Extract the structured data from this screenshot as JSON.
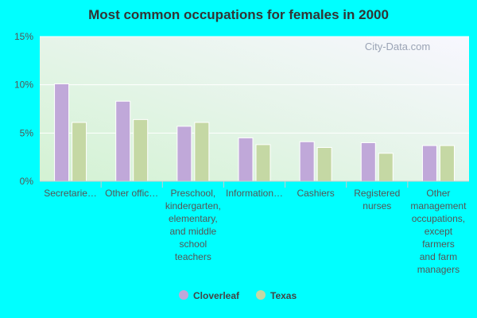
{
  "chart_data": {
    "type": "bar",
    "title": "Most common occupations for females in 2000",
    "xlabel": "",
    "ylabel": "",
    "ylim": [
      0,
      15
    ],
    "yticks": [
      "0%",
      "5%",
      "10%",
      "15%"
    ],
    "y_unit": "%",
    "grid": true,
    "legend_position": "bottom-center",
    "categories": [
      [
        "Secretarie…"
      ],
      [
        "Other offic…"
      ],
      [
        "Preschool,",
        "kindergarten,",
        "elementary,",
        "and middle",
        "school",
        "teachers"
      ],
      [
        "Information…"
      ],
      [
        "Cashiers"
      ],
      [
        "Registered",
        "nurses"
      ],
      [
        "Other",
        "management",
        "occupations,",
        "except",
        "farmers",
        "and farm",
        "managers"
      ]
    ],
    "series": [
      {
        "name": "Cloverleaf",
        "color": "#c0a8d9",
        "values": [
          10.1,
          8.3,
          5.7,
          4.5,
          4.1,
          4.0,
          3.7
        ]
      },
      {
        "name": "Texas",
        "color": "#c5d8a4",
        "values": [
          6.1,
          6.4,
          6.1,
          3.8,
          3.5,
          2.9,
          3.7
        ]
      }
    ]
  },
  "watermark": "City-Data.com"
}
